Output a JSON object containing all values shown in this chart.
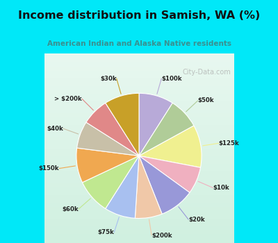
{
  "title": "Income distribution in Samish, WA (%)",
  "subtitle": "American Indian and Alaska Native residents",
  "title_color": "#111111",
  "subtitle_color": "#3a9090",
  "background_top": "#00e8f8",
  "background_chart_top": "#e8f8f0",
  "background_chart_bottom": "#c8eed8",
  "watermark": "City-Data.com",
  "labels": [
    "$100k",
    "$50k",
    "$125k",
    "$10k",
    "$20k",
    "$200k",
    "$75k",
    "$60k",
    "$150k",
    "$40k",
    "> $200k",
    "$30k"
  ],
  "values": [
    9,
    8,
    11,
    7,
    9,
    7,
    8,
    9,
    9,
    7,
    7,
    9
  ],
  "colors": [
    "#b8aad8",
    "#b0cc98",
    "#f0f090",
    "#f0b0c0",
    "#9898d8",
    "#f0c8a8",
    "#a8c0f0",
    "#c0e890",
    "#f0a850",
    "#c8c0a8",
    "#e08888",
    "#c8a028"
  ],
  "figsize": [
    4.0,
    3.5
  ],
  "dpi": 100
}
